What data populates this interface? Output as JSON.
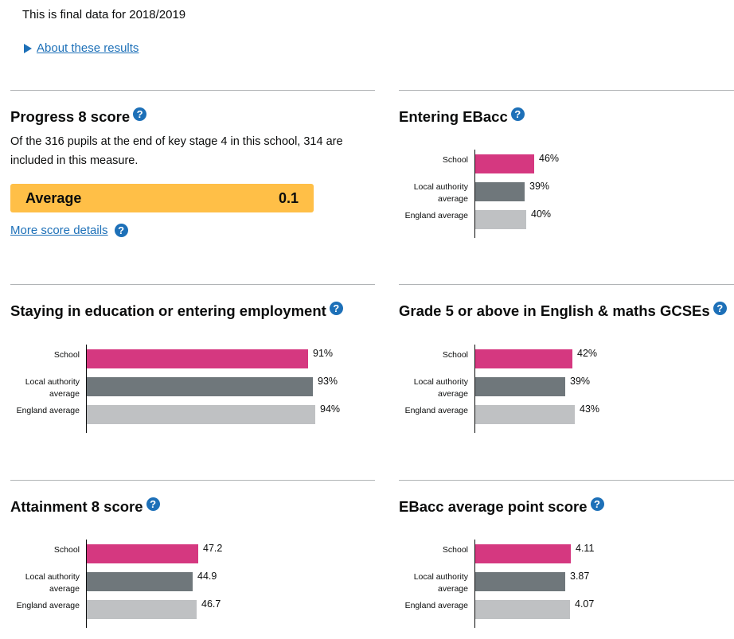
{
  "header": {
    "final_note": "This is final data for 2018/2019",
    "about_link": "About these results"
  },
  "colors": {
    "school": "#d53880",
    "local_authority": "#6f777b",
    "england": "#bfc1c3",
    "average_band": "#ffbf47",
    "link": "#1d70b8"
  },
  "progress8": {
    "title": "Progress 8 score",
    "description": "Of the 316 pupils at the end of key stage 4 in this school, 314 are included in this measure.",
    "band_label": "Average",
    "band_value": "0.1",
    "more_link": "More score details"
  },
  "panels": [
    {
      "id": "entering-ebacc",
      "title": "Entering EBacc",
      "chart_data": {
        "type": "bar",
        "orientation": "horizontal",
        "categories": [
          "School",
          "Local authority average",
          "England average"
        ],
        "values": [
          46,
          39,
          40
        ],
        "labels": [
          "46%",
          "39%",
          "40%"
        ],
        "unit": "%"
      }
    },
    {
      "id": "staying-education",
      "title": "Staying in education or entering employment",
      "chart_data": {
        "type": "bar",
        "orientation": "horizontal",
        "categories": [
          "School",
          "Local authority average",
          "England average"
        ],
        "values": [
          91,
          93,
          94
        ],
        "labels": [
          "91%",
          "93%",
          "94%"
        ],
        "unit": "%"
      }
    },
    {
      "id": "grade5-english-maths",
      "title": "Grade 5 or above in English & maths GCSEs",
      "chart_data": {
        "type": "bar",
        "orientation": "horizontal",
        "categories": [
          "School",
          "Local authority average",
          "England average"
        ],
        "values": [
          42,
          39,
          43
        ],
        "labels": [
          "42%",
          "39%",
          "43%"
        ],
        "unit": "%"
      }
    },
    {
      "id": "attainment8",
      "title": "Attainment 8 score",
      "chart_data": {
        "type": "bar",
        "orientation": "horizontal",
        "categories": [
          "School",
          "Local authority average",
          "England average"
        ],
        "values": [
          47.2,
          44.9,
          46.7
        ],
        "labels": [
          "47.2",
          "44.9",
          "46.7"
        ]
      }
    },
    {
      "id": "ebacc-aps",
      "title": "EBacc average point score",
      "chart_data": {
        "type": "bar",
        "orientation": "horizontal",
        "categories": [
          "School",
          "Local authority average",
          "England average"
        ],
        "values": [
          4.11,
          3.87,
          4.07
        ],
        "labels": [
          "4.11",
          "3.87",
          "4.07"
        ]
      }
    }
  ],
  "category_display": [
    [
      "School"
    ],
    [
      "Local authority",
      "average"
    ],
    [
      "England average"
    ]
  ]
}
